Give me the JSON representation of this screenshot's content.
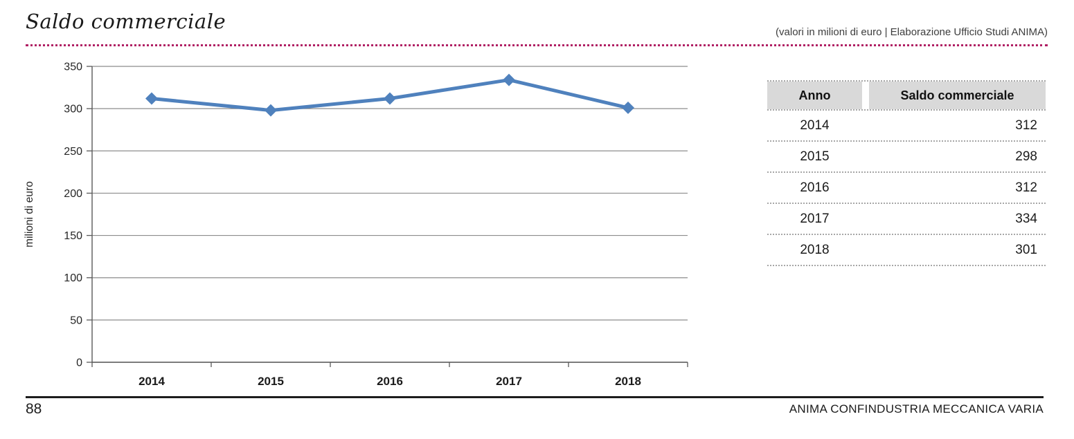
{
  "page": {
    "title": "Saldo commerciale",
    "subtitle": "(valori in milioni di euro  |  Elaborazione Ufficio Studi ANIMA)",
    "page_number": "88",
    "brand_footer": "ANIMA CONFINDUSTRIA MECCANICA VARIA"
  },
  "colors": {
    "accent_dotted_rule": "#B01F63",
    "series_line": "#4F81BD",
    "table_header_bg": "#D9D9D9",
    "gridline": "#8C8C8C",
    "axis": "#595959"
  },
  "chart_data": {
    "type": "line",
    "title": "Saldo commerciale",
    "categories": [
      "2014",
      "2015",
      "2016",
      "2017",
      "2018"
    ],
    "series": [
      {
        "name": "Saldo commerciale",
        "values": [
          312,
          298,
          312,
          334,
          301
        ]
      }
    ],
    "xlabel": "",
    "ylabel": "milioni di euro",
    "ylim": [
      0,
      350
    ],
    "ytick_step": 50,
    "grid": true,
    "legend_position": "none",
    "marker": "diamond"
  },
  "table": {
    "headers": [
      "Anno",
      "Saldo commerciale"
    ],
    "rows": [
      [
        "2014",
        "312"
      ],
      [
        "2015",
        "298"
      ],
      [
        "2016",
        "312"
      ],
      [
        "2017",
        "334"
      ],
      [
        "2018",
        "301"
      ]
    ]
  }
}
